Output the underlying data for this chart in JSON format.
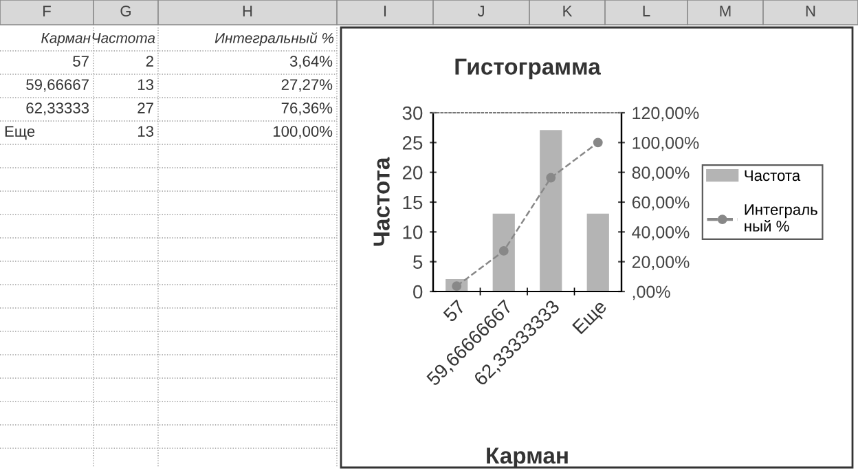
{
  "chart_data": {
    "type": "bar",
    "title": "Гистограмма",
    "xlabel": "Карман",
    "ylabel": "Частота",
    "categories": [
      "57",
      "59,66666667",
      "62,33333333",
      "Еще"
    ],
    "series": [
      {
        "name": "Частота",
        "color": "#b4b4b4",
        "values": [
          2,
          13,
          27,
          13
        ]
      },
      {
        "name": "Интегральный %",
        "type": "line",
        "axis": "y2",
        "color": "#888888",
        "marker": "circle",
        "line_style": "dashed",
        "values": [
          3.64,
          27.27,
          76.36,
          100
        ]
      }
    ],
    "ylim": [
      0,
      30
    ],
    "yticks": [
      0,
      5,
      10,
      15,
      20,
      25,
      30
    ],
    "y2lim": [
      0,
      120
    ],
    "y2ticks": [
      {
        "value": 0,
        "label": ",00%"
      },
      {
        "value": 20,
        "label": "20,00%"
      },
      {
        "value": 40,
        "label": "40,00%"
      },
      {
        "value": 60,
        "label": "60,00%"
      },
      {
        "value": 80,
        "label": "80,00%"
      },
      {
        "value": 100,
        "label": "100,00%"
      },
      {
        "value": 120,
        "label": "120,00%"
      }
    ],
    "legend": "right",
    "annotations": [
      "F",
      "G",
      "H",
      "I",
      "J",
      "K",
      "L",
      "M",
      "N",
      "Карман",
      "Частота",
      "Интегральный %",
      "57",
      "2",
      "3,64%",
      "59,66667",
      "13",
      "27,27%",
      "62,33333",
      "27",
      "76,36%",
      "Еще",
      "13",
      "100,00%"
    ]
  }
}
